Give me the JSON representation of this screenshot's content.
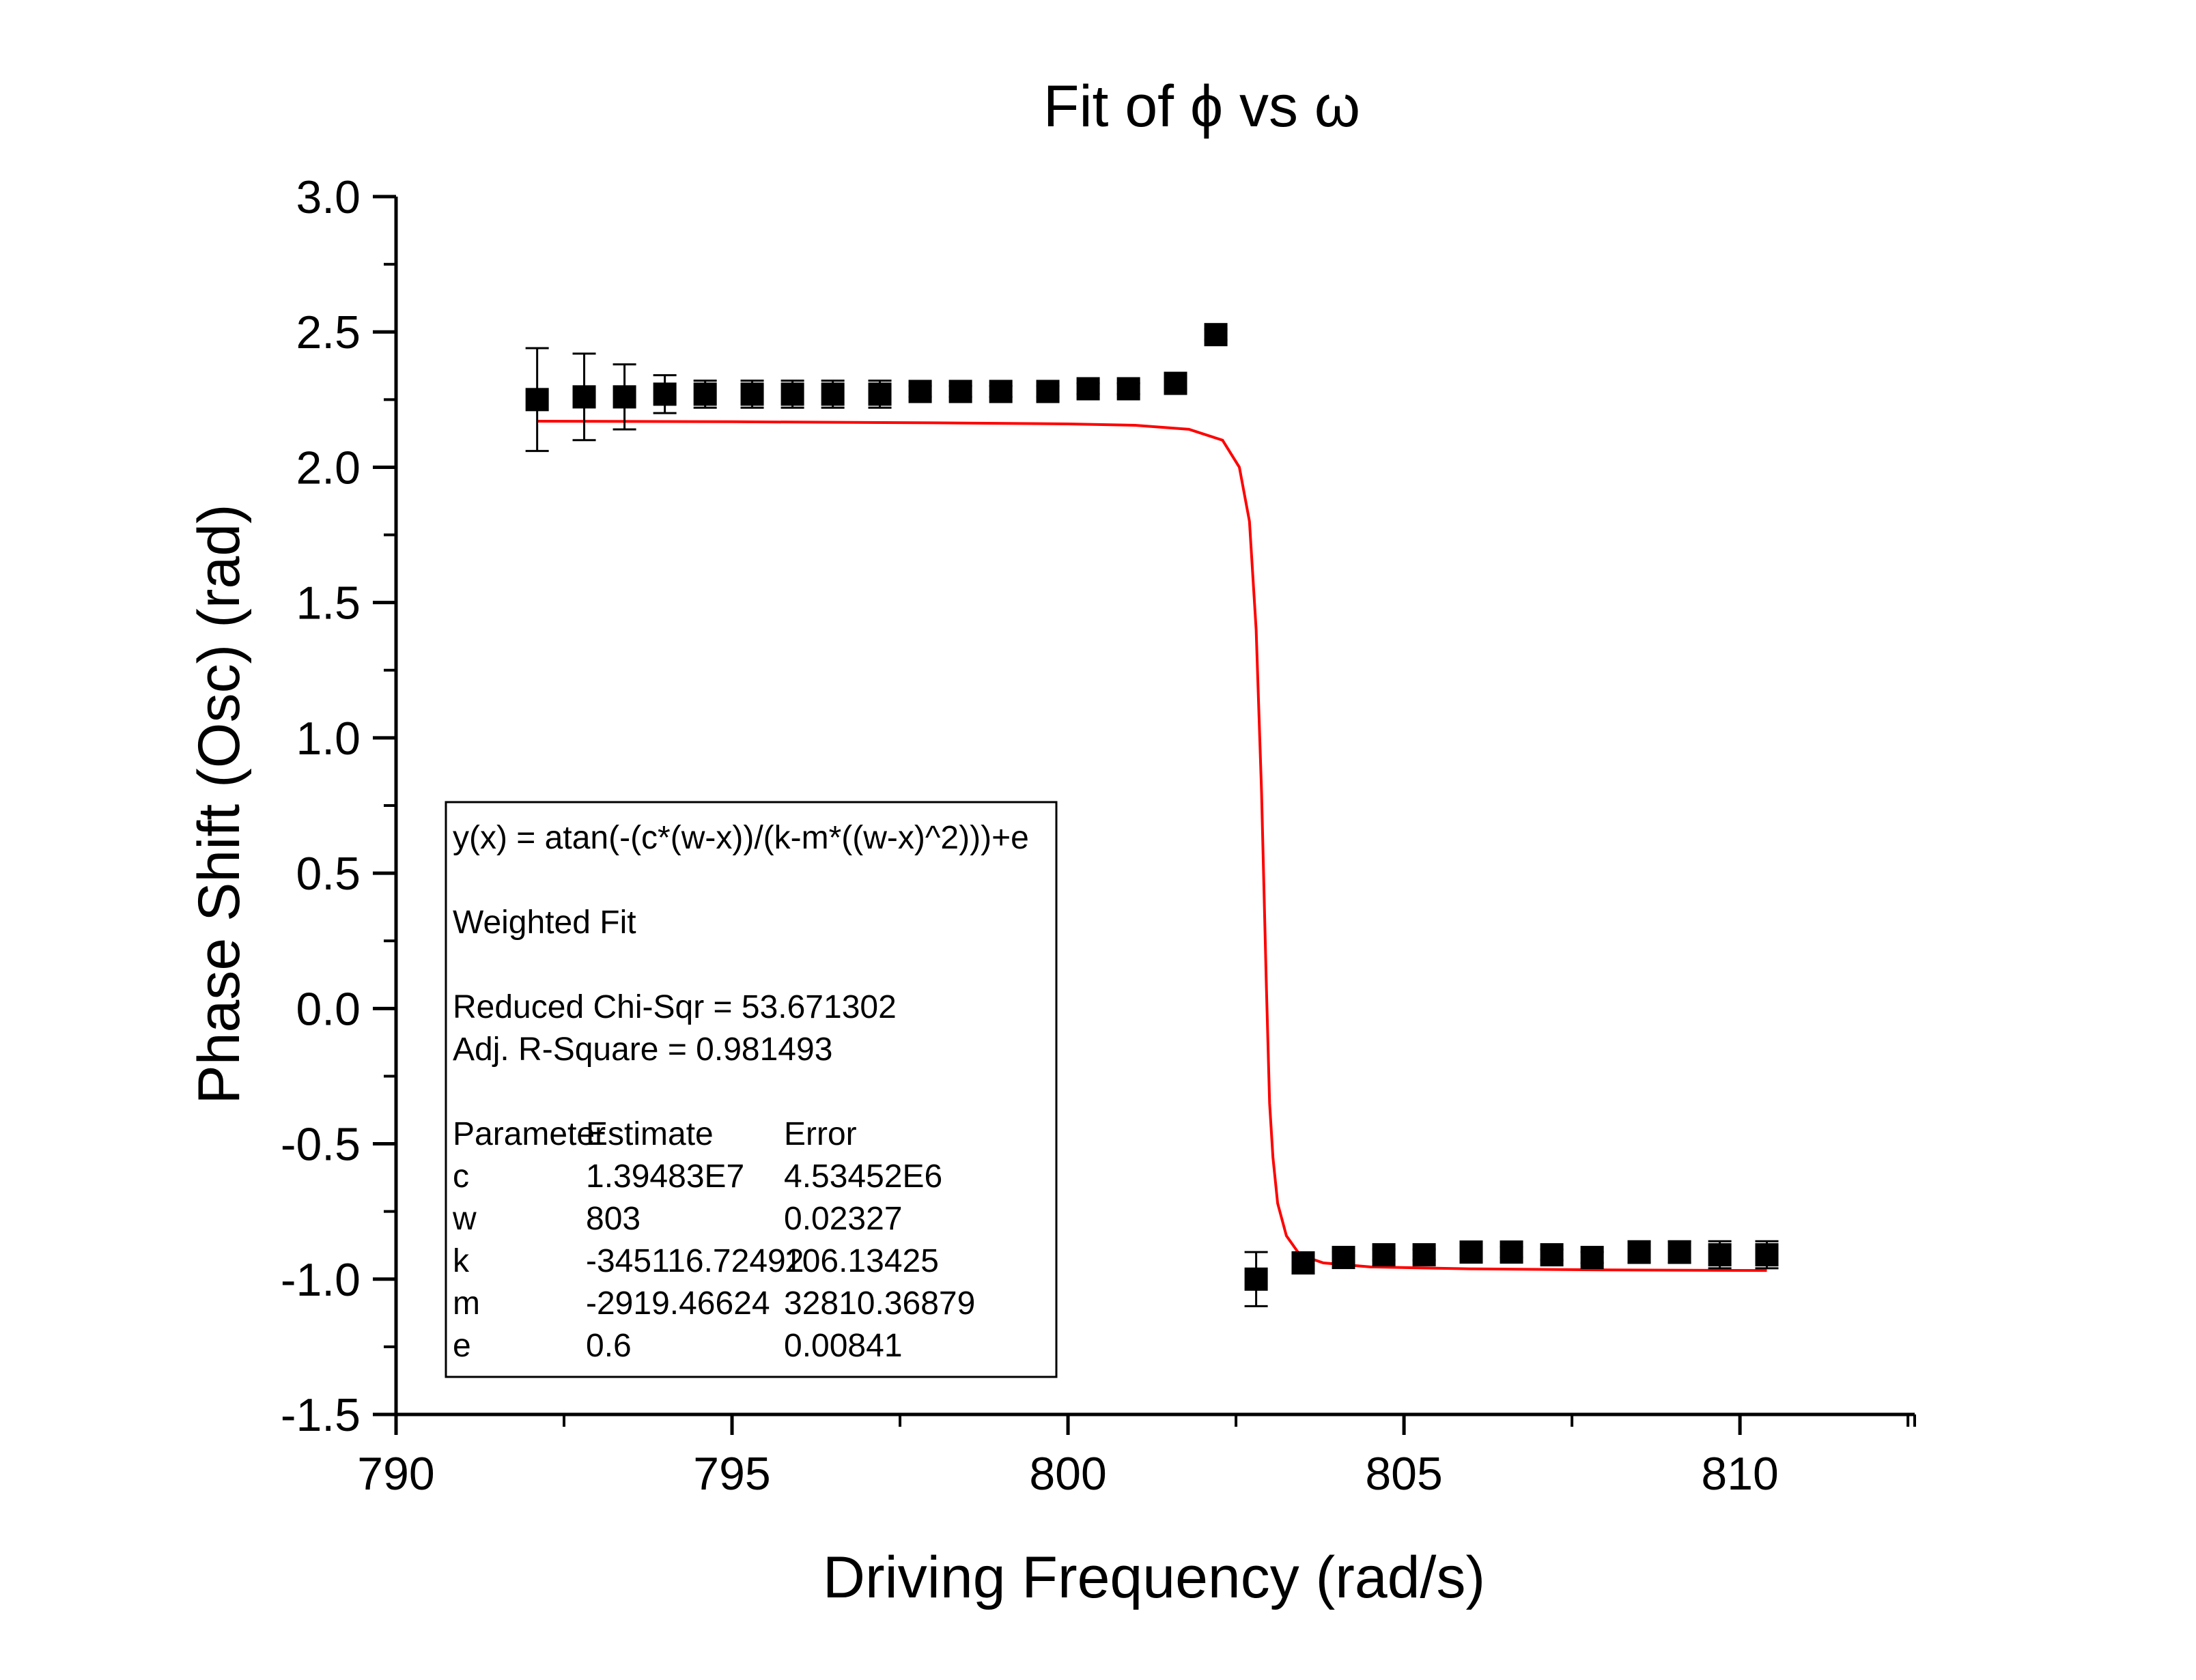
{
  "chart_data": {
    "type": "scatter",
    "title": "Fit of ϕ vs ω",
    "xlabel": "Driving Frequency (rad/s)",
    "ylabel": "Phase Shift (Osc) (rad)",
    "xlim": [
      790,
      812.6
    ],
    "ylim": [
      -1.5,
      3.0
    ],
    "x_ticks": [
      "790",
      "795",
      "800",
      "805",
      "810"
    ],
    "y_ticks": [
      "3.0",
      "2.5",
      "2.0",
      "1.5",
      "1.0",
      "0.5",
      "0.0",
      "-0.5",
      "-1.0",
      "-1.5"
    ],
    "grid": false,
    "series": [
      {
        "color": "#000000",
        "marker": "square",
        "points": [
          {
            "x": 792.1,
            "y": 2.25,
            "err": 0.19
          },
          {
            "x": 792.8,
            "y": 2.26,
            "err": 0.16
          },
          {
            "x": 793.4,
            "y": 2.26,
            "err": 0.12
          },
          {
            "x": 794.0,
            "y": 2.27,
            "err": 0.07
          },
          {
            "x": 794.6,
            "y": 2.27,
            "err": 0.05
          },
          {
            "x": 795.3,
            "y": 2.27,
            "err": 0.05
          },
          {
            "x": 795.9,
            "y": 2.27,
            "err": 0.05
          },
          {
            "x": 796.5,
            "y": 2.27,
            "err": 0.05
          },
          {
            "x": 797.2,
            "y": 2.27,
            "err": 0.05
          },
          {
            "x": 797.8,
            "y": 2.28,
            "err": 0.02
          },
          {
            "x": 798.4,
            "y": 2.28,
            "err": 0.02
          },
          {
            "x": 799.0,
            "y": 2.28,
            "err": 0.02
          },
          {
            "x": 799.7,
            "y": 2.28,
            "err": 0.02
          },
          {
            "x": 800.3,
            "y": 2.29,
            "err": 0.02
          },
          {
            "x": 800.9,
            "y": 2.29,
            "err": 0.02
          },
          {
            "x": 801.6,
            "y": 2.31,
            "err": 0.02
          },
          {
            "x": 802.2,
            "y": 2.49,
            "err": 0.02
          },
          {
            "x": 802.8,
            "y": -1.0,
            "err": 0.1
          },
          {
            "x": 803.5,
            "y": -0.94,
            "err": 0.03
          },
          {
            "x": 804.1,
            "y": -0.92,
            "err": 0.02
          },
          {
            "x": 804.7,
            "y": -0.91,
            "err": 0.02
          },
          {
            "x": 805.3,
            "y": -0.91,
            "err": 0.02
          },
          {
            "x": 806.0,
            "y": -0.9,
            "err": 0.02
          },
          {
            "x": 806.6,
            "y": -0.9,
            "err": 0.02
          },
          {
            "x": 807.2,
            "y": -0.91,
            "err": 0.02
          },
          {
            "x": 807.8,
            "y": -0.92,
            "err": 0.02
          },
          {
            "x": 808.5,
            "y": -0.9,
            "err": 0.04
          },
          {
            "x": 809.1,
            "y": -0.9,
            "err": 0.04
          },
          {
            "x": 809.7,
            "y": -0.91,
            "err": 0.05
          },
          {
            "x": 810.4,
            "y": -0.91,
            "err": 0.05
          }
        ]
      },
      {
        "type": "line",
        "color": "#ff0000",
        "points": [
          {
            "x": 792.1,
            "y": 2.17
          },
          {
            "x": 795.0,
            "y": 2.168
          },
          {
            "x": 798.0,
            "y": 2.164
          },
          {
            "x": 800.0,
            "y": 2.16
          },
          {
            "x": 801.0,
            "y": 2.155
          },
          {
            "x": 801.8,
            "y": 2.14
          },
          {
            "x": 802.3,
            "y": 2.1
          },
          {
            "x": 802.55,
            "y": 2.0
          },
          {
            "x": 802.7,
            "y": 1.8
          },
          {
            "x": 802.8,
            "y": 1.4
          },
          {
            "x": 802.88,
            "y": 0.8
          },
          {
            "x": 802.95,
            "y": 0.1
          },
          {
            "x": 803.0,
            "y": -0.35
          },
          {
            "x": 803.05,
            "y": -0.55
          },
          {
            "x": 803.12,
            "y": -0.72
          },
          {
            "x": 803.25,
            "y": -0.84
          },
          {
            "x": 803.45,
            "y": -0.91
          },
          {
            "x": 803.8,
            "y": -0.94
          },
          {
            "x": 804.5,
            "y": -0.955
          },
          {
            "x": 806.0,
            "y": -0.962
          },
          {
            "x": 808.0,
            "y": -0.966
          },
          {
            "x": 810.4,
            "y": -0.968
          }
        ]
      }
    ],
    "legend": "bottom-left",
    "annotation_box": {
      "lines": [
        [
          "y(x) = atan(-(c*(w-x))/(k-m*((w-x)^2)))+e",
          "",
          ""
        ],
        [
          "",
          "",
          ""
        ],
        [
          "Weighted Fit",
          "",
          ""
        ],
        [
          "",
          "",
          ""
        ],
        [
          "Reduced Chi-Sqr = 53.671302",
          "",
          ""
        ],
        [
          "Adj. R-Square   = 0.981493",
          "",
          ""
        ],
        [
          "",
          "",
          ""
        ],
        [
          "Parameter",
          "Estimate",
          "Error"
        ],
        [
          "c",
          "1.39483E7",
          "4.53452E6"
        ],
        [
          "w",
          "803",
          "0.02327"
        ],
        [
          "k",
          "-345116.72492",
          "106.13425"
        ],
        [
          "m",
          "-2919.46624",
          "32810.36879"
        ],
        [
          "e",
          "0.6",
          "0.00841"
        ]
      ]
    }
  }
}
